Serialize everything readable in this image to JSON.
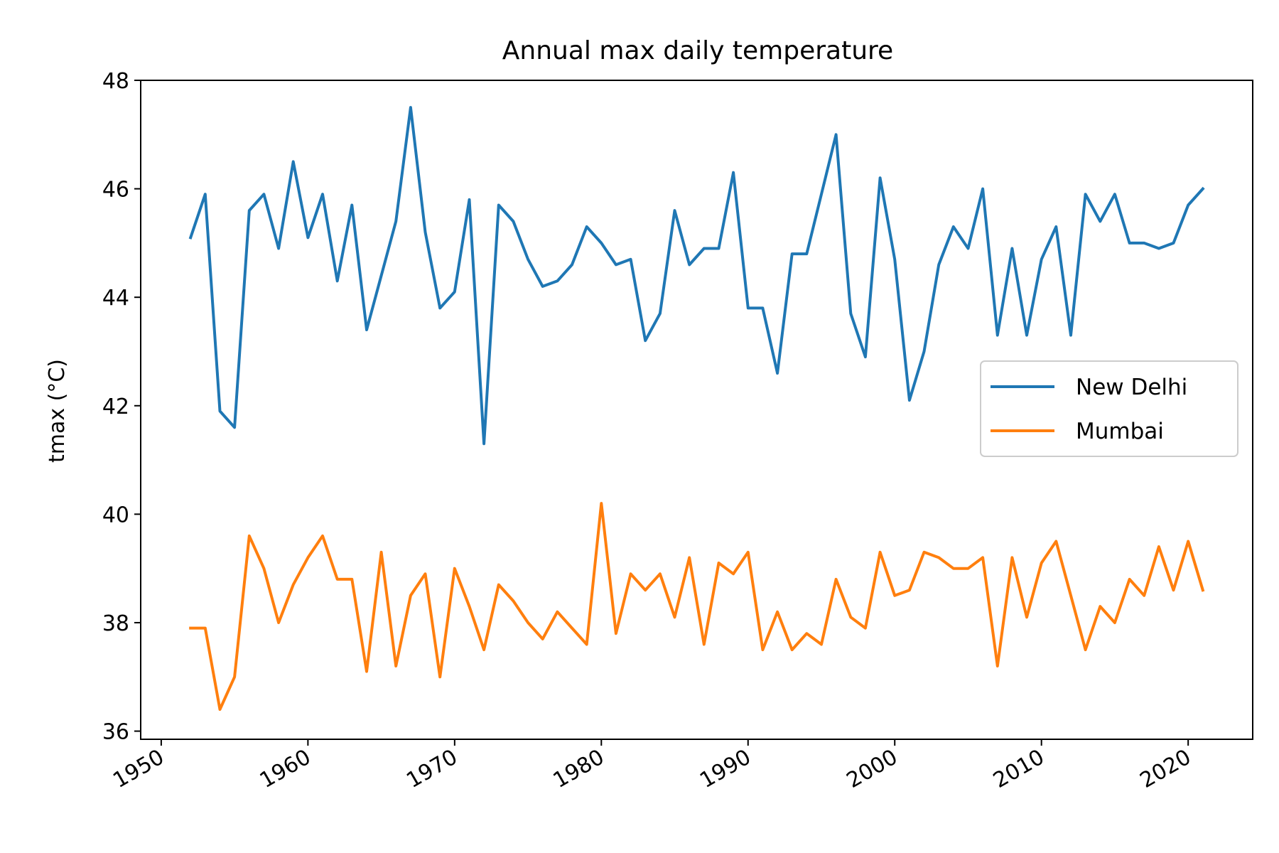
{
  "chart_data": {
    "type": "line",
    "title": "Annual max daily temperature",
    "xlabel": "",
    "ylabel": "tmax (°C)",
    "xlim": [
      1948.6,
      2024.4
    ],
    "ylim": [
      35.85,
      48.0
    ],
    "x_ticks": [
      1950,
      1960,
      1970,
      1980,
      1990,
      2000,
      2010,
      2020
    ],
    "y_ticks": [
      36,
      38,
      40,
      42,
      44,
      46,
      48
    ],
    "grid": false,
    "legend_position": "center-right",
    "x": [
      1952,
      1953,
      1954,
      1955,
      1956,
      1957,
      1958,
      1959,
      1960,
      1961,
      1962,
      1963,
      1964,
      1965,
      1966,
      1967,
      1968,
      1969,
      1970,
      1971,
      1972,
      1973,
      1974,
      1975,
      1976,
      1977,
      1978,
      1979,
      1980,
      1981,
      1982,
      1983,
      1984,
      1985,
      1986,
      1987,
      1988,
      1989,
      1990,
      1991,
      1992,
      1993,
      1994,
      1995,
      1996,
      1997,
      1998,
      1999,
      2000,
      2001,
      2002,
      2003,
      2004,
      2005,
      2006,
      2007,
      2008,
      2009,
      2010,
      2011,
      2012,
      2013,
      2014,
      2015,
      2016,
      2017,
      2018,
      2019,
      2020,
      2021
    ],
    "series": [
      {
        "name": "New Delhi",
        "color": "#1f77b4",
        "values": [
          45.1,
          45.9,
          41.9,
          41.6,
          45.6,
          45.9,
          44.9,
          46.5,
          45.1,
          45.9,
          44.3,
          45.7,
          43.4,
          44.4,
          45.4,
          47.5,
          45.2,
          43.8,
          44.1,
          45.8,
          41.3,
          45.7,
          45.4,
          44.7,
          44.2,
          44.3,
          44.6,
          45.3,
          45.0,
          44.6,
          44.7,
          43.2,
          43.7,
          45.6,
          44.6,
          44.9,
          44.9,
          46.3,
          43.8,
          43.8,
          42.6,
          44.8,
          44.8,
          45.9,
          47.0,
          43.7,
          42.9,
          46.2,
          44.7,
          42.1,
          43.0,
          44.6,
          45.3,
          44.9,
          46.0,
          43.3,
          44.9,
          43.3,
          44.7,
          45.3,
          43.3,
          45.9,
          45.4,
          45.9,
          45.0,
          45.0,
          44.9,
          45.0,
          45.7,
          46.0
        ]
      },
      {
        "name": "Mumbai",
        "color": "#ff7f0e",
        "values": [
          37.9,
          37.9,
          36.4,
          37.0,
          39.6,
          39.0,
          38.0,
          38.7,
          39.2,
          39.6,
          38.8,
          38.8,
          37.1,
          39.3,
          37.2,
          38.5,
          38.9,
          37.0,
          39.0,
          38.3,
          37.5,
          38.7,
          38.4,
          38.0,
          37.7,
          38.2,
          37.9,
          37.6,
          40.2,
          37.8,
          38.9,
          38.6,
          38.9,
          38.1,
          39.2,
          37.6,
          39.1,
          38.9,
          39.3,
          37.5,
          38.2,
          37.5,
          37.8,
          37.6,
          38.8,
          38.1,
          37.9,
          39.3,
          38.5,
          38.6,
          39.3,
          39.2,
          39.0,
          39.0,
          39.2,
          37.2,
          39.2,
          38.1,
          39.1,
          39.5,
          38.5,
          37.5,
          38.3,
          38.0,
          38.8,
          38.5,
          39.4,
          38.6,
          39.5,
          38.6
        ]
      }
    ]
  }
}
